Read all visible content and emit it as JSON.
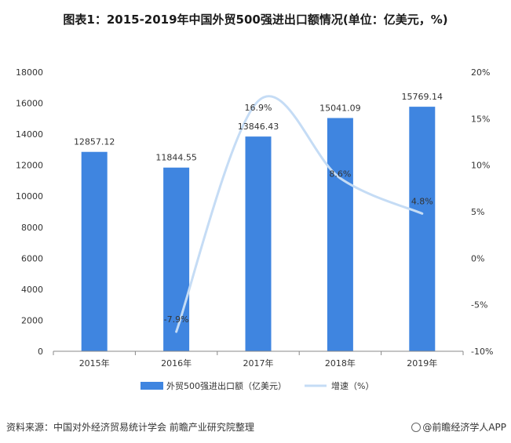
{
  "chart_data": {
    "type": "bar",
    "title": "图表1：2015-2019年中国外贸500强进出口额情况(单位：亿美元，%)",
    "categories": [
      "2015年",
      "2016年",
      "2017年",
      "2018年",
      "2019年"
    ],
    "series": [
      {
        "name": "外贸500强进出口额（亿美元）",
        "type": "bar",
        "axis": "left",
        "color": "#3f85e0",
        "values": [
          12857.12,
          11844.55,
          13846.43,
          15041.09,
          15769.14
        ],
        "labels": [
          "12857.12",
          "11844.55",
          "13846.43",
          "15041.09",
          "15769.14"
        ]
      },
      {
        "name": "增速（%）",
        "type": "line",
        "axis": "right",
        "color": "#c5dcf5",
        "values": [
          null,
          -7.9,
          16.9,
          8.6,
          4.8
        ],
        "labels": [
          "",
          "-7.9%",
          "16.9%",
          "8.6%",
          "4.8%"
        ]
      }
    ],
    "y_left": {
      "range": [
        0,
        18000
      ],
      "ticks": [
        0,
        2000,
        4000,
        6000,
        8000,
        10000,
        12000,
        14000,
        16000,
        18000
      ],
      "tick_labels": [
        "0",
        "2000",
        "4000",
        "6000",
        "8000",
        "10000",
        "12000",
        "14000",
        "16000",
        "18000"
      ]
    },
    "y_right": {
      "range": [
        -10,
        20
      ],
      "ticks": [
        -10,
        -5,
        0,
        5,
        10,
        15,
        20
      ],
      "tick_labels": [
        "-10%",
        "-5%",
        "0%",
        "5%",
        "10%",
        "15%",
        "20%"
      ]
    },
    "grid": false,
    "legend_placement": "bottom"
  },
  "footer": {
    "source": "资料来源：中国对外经济贸易统计学会  前瞻产业研究院整理",
    "brand": "@前瞻经济学人APP",
    "brand_icon": "qianzhan-logo-icon"
  }
}
